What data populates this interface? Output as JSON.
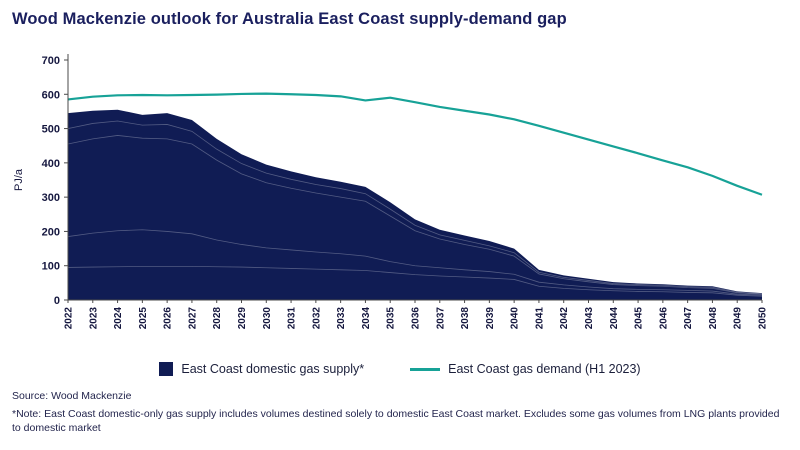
{
  "title": "Wood Mackenzie outlook for Australia East Coast supply-demand gap",
  "source": "Source: Wood Mackenzie",
  "note": "*Note: East Coast domestic-only gas supply includes volumes destined solely to domestic East Coast market. Excludes some gas volumes from LNG plants provided to domestic market",
  "colors": {
    "title_navy": "#1a1f5e",
    "supply_area": "#101c54",
    "demand_line": "#17a297",
    "axis": "#4a4a4a",
    "tick_label": "#15173f"
  },
  "chart_data": {
    "type": "area",
    "title": "Wood Mackenzie outlook for Australia East Coast supply-demand gap",
    "xlabel": "",
    "ylabel": "PJ/a",
    "ylim": [
      0,
      700
    ],
    "yticks": [
      0,
      100,
      200,
      300,
      400,
      500,
      600,
      700
    ],
    "grid": false,
    "legend_position": "bottom",
    "years": [
      2022,
      2023,
      2024,
      2025,
      2026,
      2027,
      2028,
      2029,
      2030,
      2031,
      2032,
      2033,
      2034,
      2035,
      2036,
      2037,
      2038,
      2039,
      2040,
      2041,
      2042,
      2043,
      2044,
      2045,
      2046,
      2047,
      2048,
      2049,
      2050
    ],
    "series": [
      {
        "name": "East Coast domestic gas supply*",
        "type": "area",
        "color": "#101c54",
        "values": [
          545,
          552,
          555,
          540,
          545,
          525,
          470,
          425,
          395,
          375,
          358,
          345,
          330,
          285,
          235,
          205,
          188,
          172,
          150,
          88,
          72,
          62,
          52,
          48,
          46,
          42,
          40,
          25,
          20
        ]
      },
      {
        "name": "East Coast gas demand (H1 2023)",
        "type": "line",
        "color": "#17a297",
        "values": [
          585,
          593,
          597,
          598,
          597,
          598,
          599,
          601,
          602,
          600,
          598,
          594,
          582,
          590,
          577,
          563,
          552,
          541,
          527,
          508,
          488,
          468,
          448,
          428,
          407,
          387,
          362,
          333,
          307
        ]
      }
    ],
    "supply_internal_boundaries": [
      [
        95,
        96,
        97,
        98,
        98,
        98,
        97,
        96,
        94,
        92,
        90,
        88,
        86,
        80,
        74,
        70,
        67,
        64,
        60,
        40,
        34,
        30,
        27,
        25,
        24,
        22,
        21,
        14,
        11
      ],
      [
        185,
        195,
        202,
        205,
        200,
        193,
        175,
        162,
        152,
        146,
        140,
        135,
        128,
        112,
        100,
        94,
        88,
        83,
        75,
        52,
        44,
        38,
        33,
        31,
        30,
        28,
        26,
        17,
        14
      ],
      [
        455,
        470,
        480,
        472,
        470,
        455,
        408,
        368,
        342,
        326,
        312,
        300,
        288,
        245,
        202,
        178,
        162,
        148,
        128,
        76,
        62,
        53,
        45,
        42,
        40,
        36,
        34,
        21,
        17
      ],
      [
        500,
        515,
        522,
        510,
        512,
        492,
        440,
        398,
        370,
        352,
        337,
        325,
        310,
        265,
        218,
        190,
        174,
        158,
        138,
        81,
        66,
        57,
        48,
        45,
        43,
        39,
        37,
        23,
        18
      ]
    ]
  }
}
